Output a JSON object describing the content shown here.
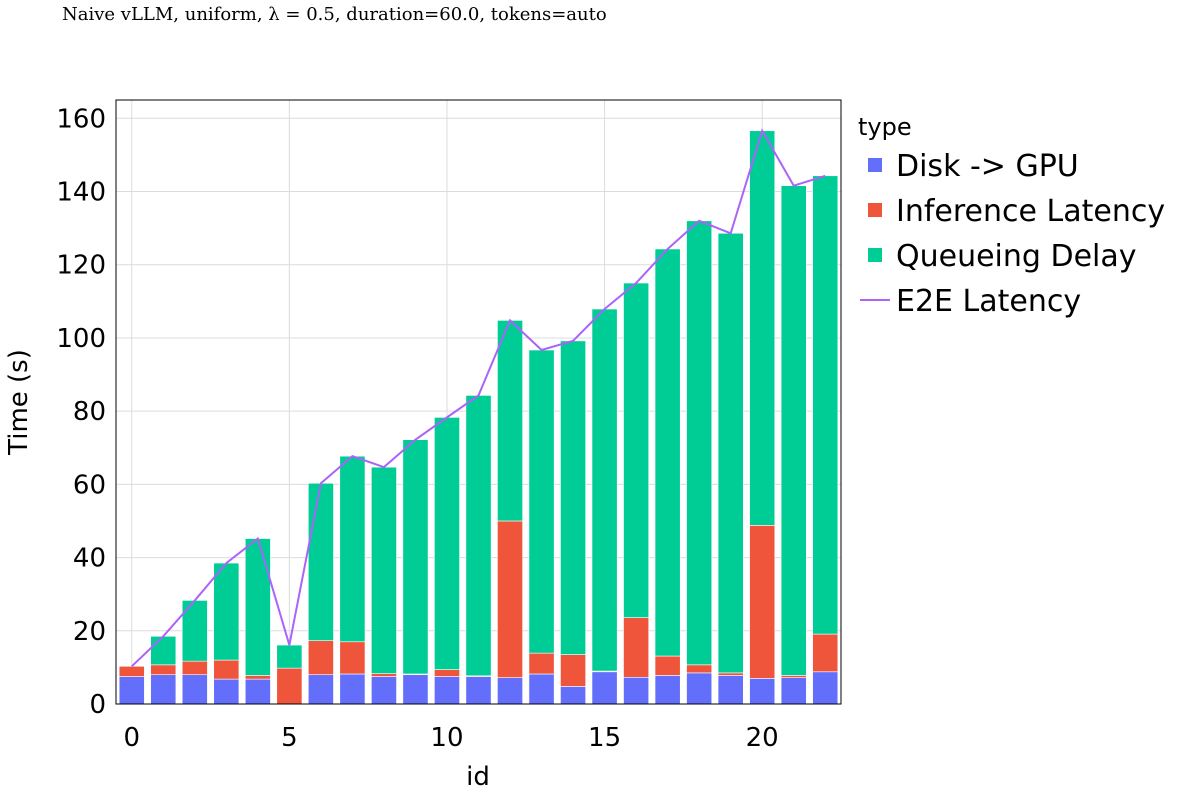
{
  "chart_data": {
    "type": "bar",
    "title": "Naive vLLM, uniform, λ = 0.5, duration=60.0, tokens=auto",
    "xlabel": "id",
    "ylabel": "Time (s)",
    "xlim": [
      -0.5,
      22.5
    ],
    "ylim": [
      0,
      165
    ],
    "x_ticks": [
      0,
      5,
      10,
      15,
      20
    ],
    "y_ticks": [
      0,
      20,
      40,
      60,
      80,
      100,
      120,
      140,
      160
    ],
    "grid": true,
    "legend_title": "type",
    "legend_position": "right",
    "x": [
      0,
      1,
      2,
      3,
      4,
      5,
      6,
      7,
      8,
      9,
      10,
      11,
      12,
      13,
      14,
      15,
      16,
      17,
      18,
      19,
      20,
      21,
      22
    ],
    "series": [
      {
        "name": "Disk -> GPU",
        "mark": "bar",
        "color": "#636efa",
        "values": [
          7.5,
          8,
          8,
          6.8,
          6.8,
          0,
          8,
          8.2,
          7.5,
          8,
          7.5,
          7.5,
          7.2,
          8.2,
          4.8,
          8.8,
          7.3,
          7.8,
          8.5,
          7.8,
          7,
          7.2,
          8.8
        ]
      },
      {
        "name": "Inference Latency",
        "mark": "bar",
        "color": "#ef553b",
        "values": [
          2.8,
          2.7,
          3.7,
          5.2,
          1,
          9.8,
          9.3,
          8.8,
          0.8,
          0.2,
          1.9,
          0.2,
          42.8,
          5.7,
          8.7,
          0.2,
          16.3,
          5.3,
          2.2,
          0.7,
          41.8,
          0.6,
          10.3
        ]
      },
      {
        "name": "Queueing Delay",
        "mark": "bar",
        "color": "#00cc96",
        "values": [
          0,
          7.8,
          16.6,
          26.5,
          37.4,
          6.3,
          43,
          50.7,
          56.4,
          64,
          68.9,
          76.6,
          54.8,
          82.8,
          85.7,
          98.9,
          91.4,
          111.2,
          121.3,
          120.1,
          107.8,
          133.8,
          125.2
        ]
      },
      {
        "name": "E2E Latency",
        "mark": "line",
        "color": "#ab63fa",
        "values": [
          10.3,
          18.5,
          28.3,
          38.5,
          45.2,
          16.1,
          60.3,
          67.7,
          64.7,
          72.2,
          78.3,
          84.3,
          104.8,
          96.7,
          99.2,
          107.9,
          115,
          124.3,
          132,
          128.6,
          156.6,
          141.6,
          144.3
        ]
      }
    ]
  }
}
